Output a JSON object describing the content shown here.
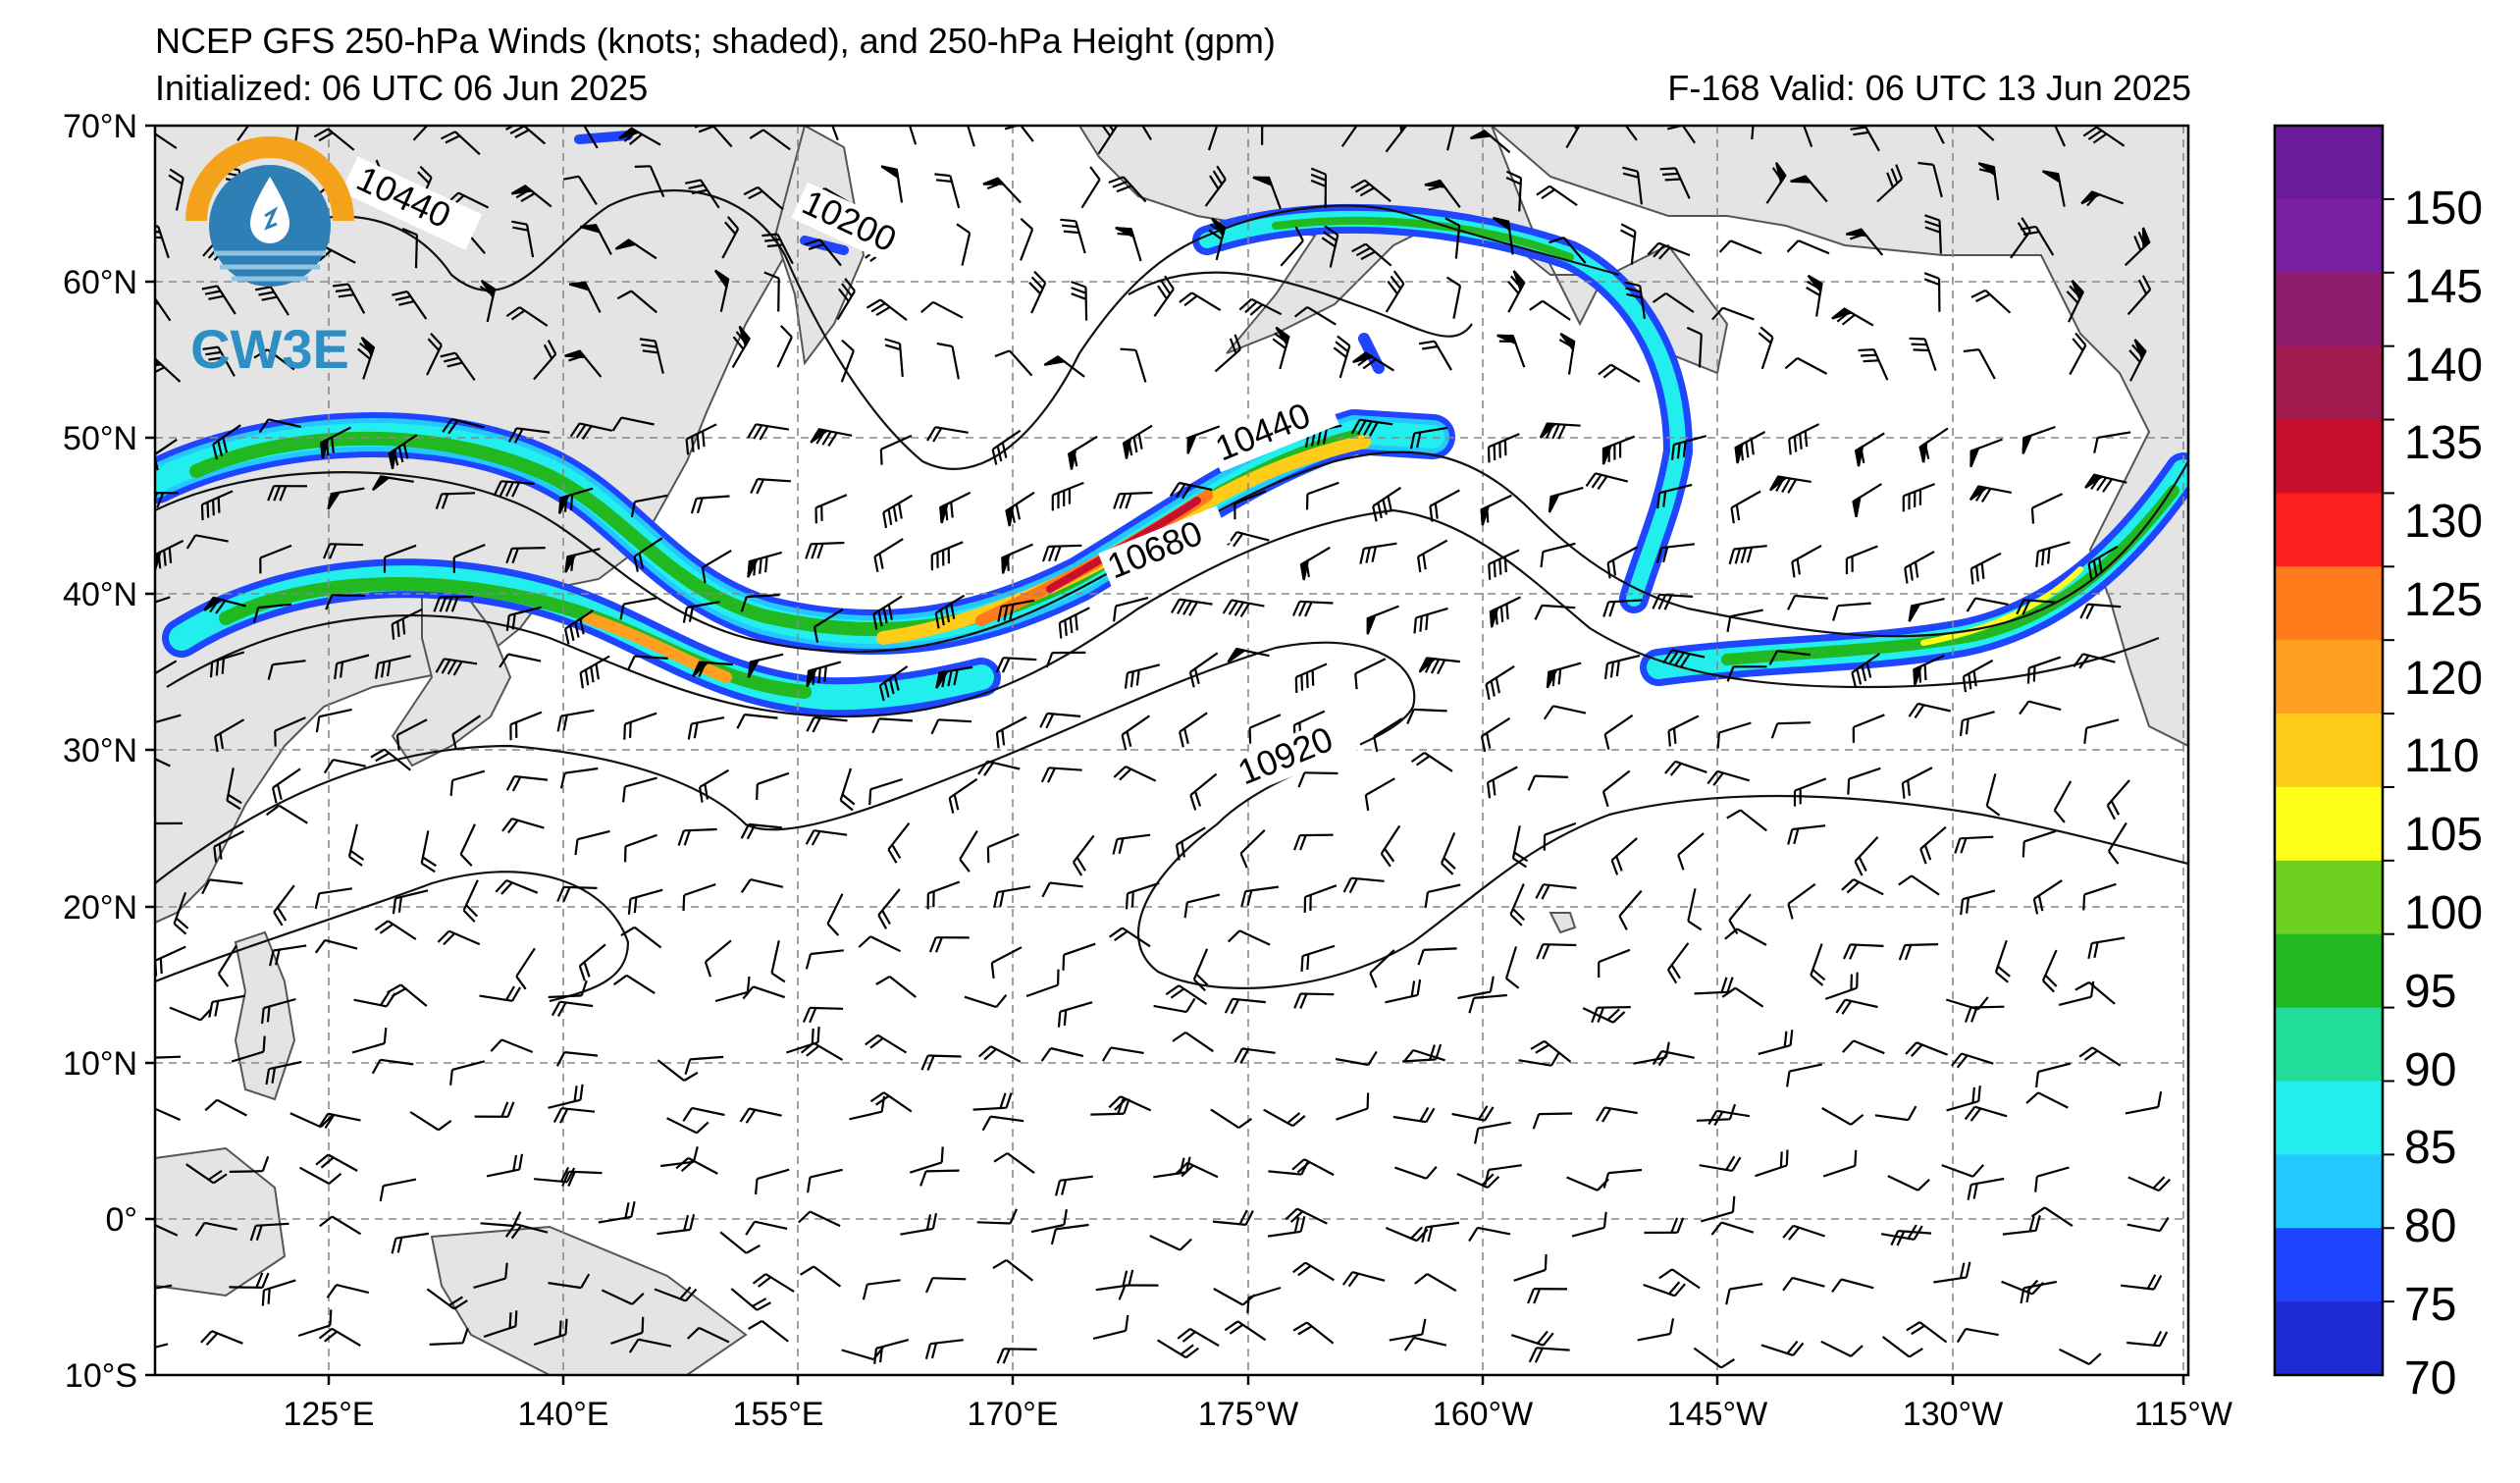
{
  "header": {
    "title": "NCEP GFS 250-hPa Winds (knots; shaded), and 250-hPa Height (gpm)",
    "initialized": "Initialized: 06 UTC 06 Jun 2025",
    "valid": "F-168  Valid: 06 UTC 13 Jun 2025"
  },
  "logo": {
    "text": "CW3E"
  },
  "map": {
    "lon_labels": [
      "125°E",
      "140°E",
      "155°E",
      "170°E",
      "175°W",
      "160°W",
      "145°W",
      "130°W",
      "115°W"
    ],
    "lat_labels": [
      "70°N",
      "60°N",
      "50°N",
      "40°N",
      "30°N",
      "20°N",
      "10°N",
      "0°",
      "10°S"
    ],
    "land_color": "#e4e4e4",
    "ocean_color": "#ffffff",
    "contour_labels": [
      "10440",
      "10200",
      "10440",
      "10680",
      "10920"
    ]
  },
  "colorbar": {
    "ticks": [
      "150",
      "145",
      "140",
      "135",
      "130",
      "125",
      "120",
      "110",
      "105",
      "100",
      "95",
      "90",
      "85",
      "80",
      "75",
      "70"
    ],
    "colors": [
      "#6a1b9a",
      "#7b1fa2",
      "#8e1b6e",
      "#a31a4f",
      "#c8102e",
      "#ff2020",
      "#ff7a1a",
      "#ffa020",
      "#ffcc1a",
      "#ffff1a",
      "#6fd11f",
      "#22b822",
      "#22dd99",
      "#22eeee",
      "#22c8ff",
      "#1f45ff",
      "#1e2ad2"
    ]
  }
}
